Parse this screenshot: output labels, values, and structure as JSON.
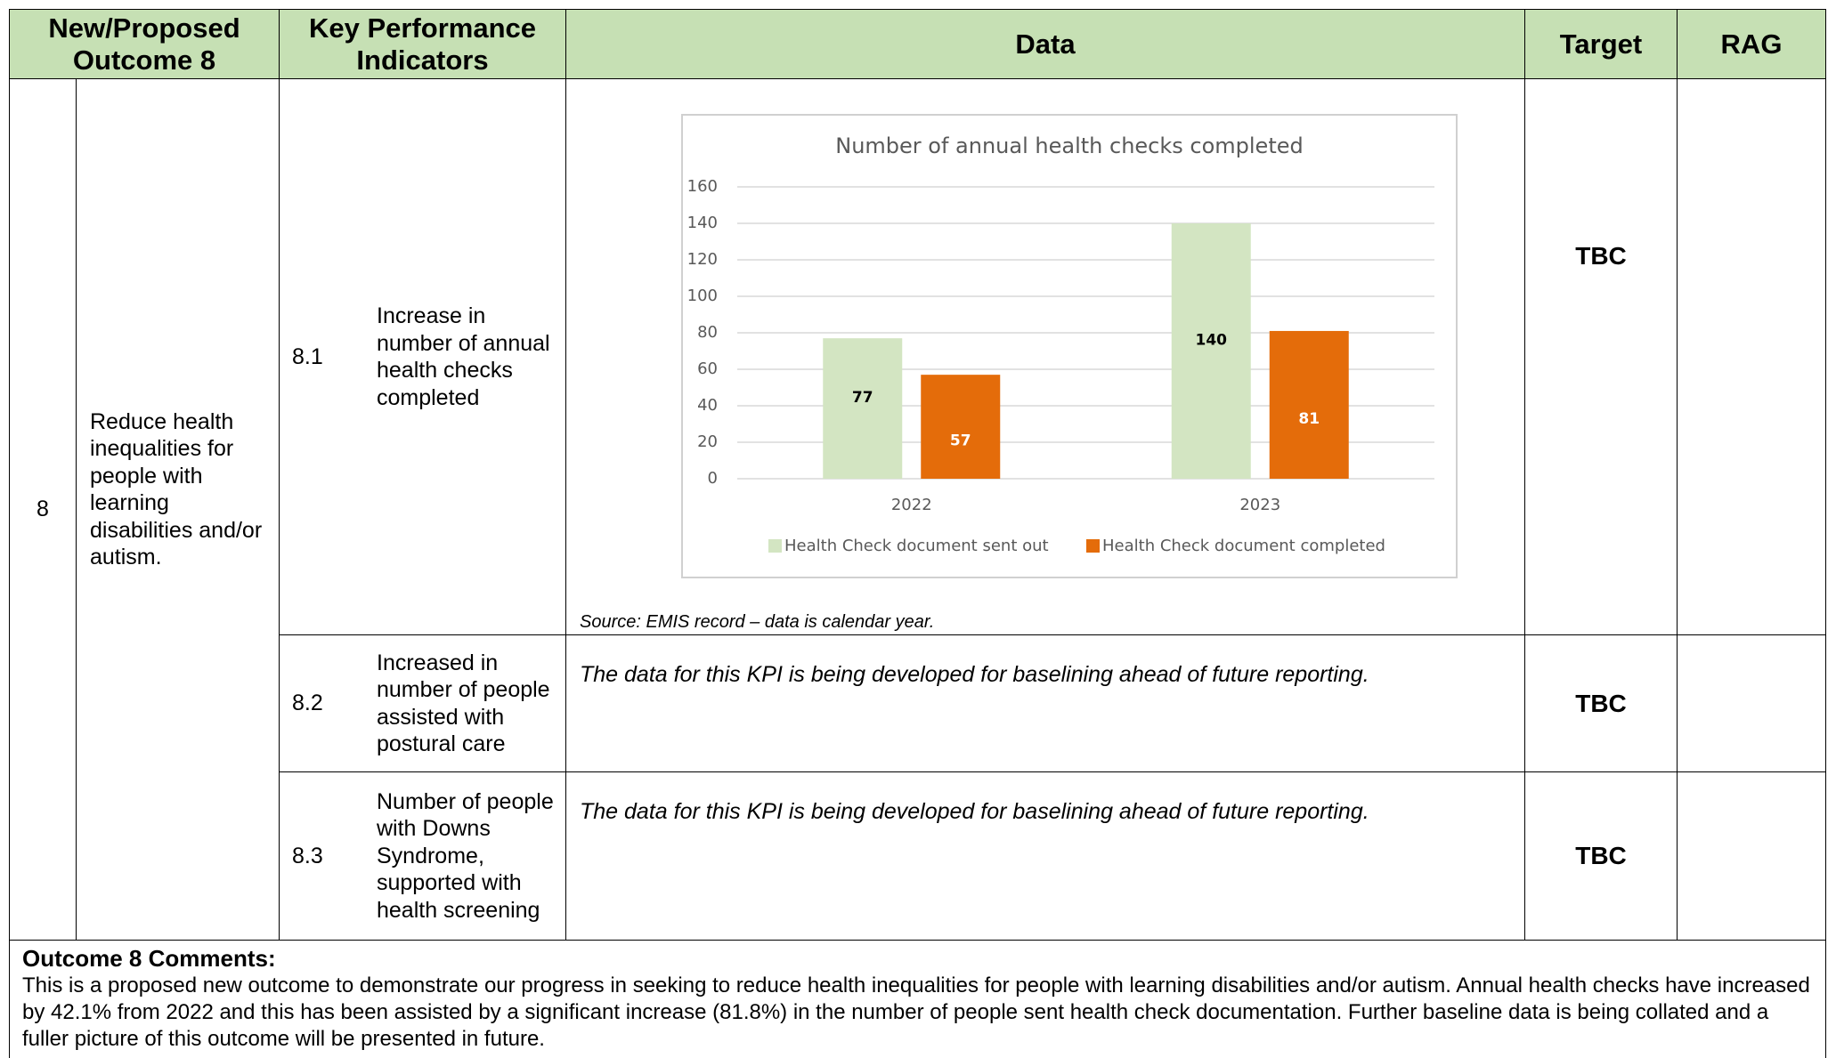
{
  "table": {
    "headers": [
      "New/Proposed Outcome 8",
      "Key Performance Indicators",
      "Data",
      "Target",
      "RAG"
    ],
    "outcome_number": "8",
    "outcome": "Reduce health inequalities for people with learning disabilities and/or autism.",
    "rows": [
      {
        "kpi_number": "8.1",
        "kpi": "Increase in number of annual health checks completed",
        "source": "Source: EMIS record – data is calendar year.",
        "target": "TBC"
      },
      {
        "kpi_number": "8.2",
        "kpi": "Increased in number of people assisted with postural care",
        "data": "The data for this KPI is being developed for baselining ahead of future reporting.",
        "target": "TBC"
      },
      {
        "kpi_number": "8.3",
        "kpi": "Number of people with Downs Syndrome, supported with health screening",
        "data": "The data for this KPI is being developed for baselining ahead of future reporting.",
        "target": "TBC"
      }
    ]
  },
  "chart_data": {
    "type": "bar",
    "title": "Number of annual health checks completed",
    "categories": [
      "2022",
      "2023"
    ],
    "series": [
      {
        "name": "Health Check document sent out",
        "color": "#d3e5c2",
        "values": [
          77,
          140
        ]
      },
      {
        "name": "Health Check document completed",
        "color": "#e46c0a",
        "values": [
          57,
          81
        ]
      }
    ],
    "ylim": [
      0,
      160
    ],
    "yticks": [
      0,
      20,
      40,
      60,
      80,
      100,
      120,
      140,
      160
    ],
    "grid": true,
    "legend": "bottom"
  },
  "comments": {
    "title": "Outcome 8 Comments:",
    "text": "This is a proposed new outcome to demonstrate our progress in seeking to reduce health inequalities for people with learning disabilities and/or autism. Annual health checks have increased by 42.1% from 2022 and this has been assisted by a significant increase (81.8%) in the number of people sent health check documentation. Further baseline data is being collated and a fuller picture of this outcome will be presented in future."
  }
}
